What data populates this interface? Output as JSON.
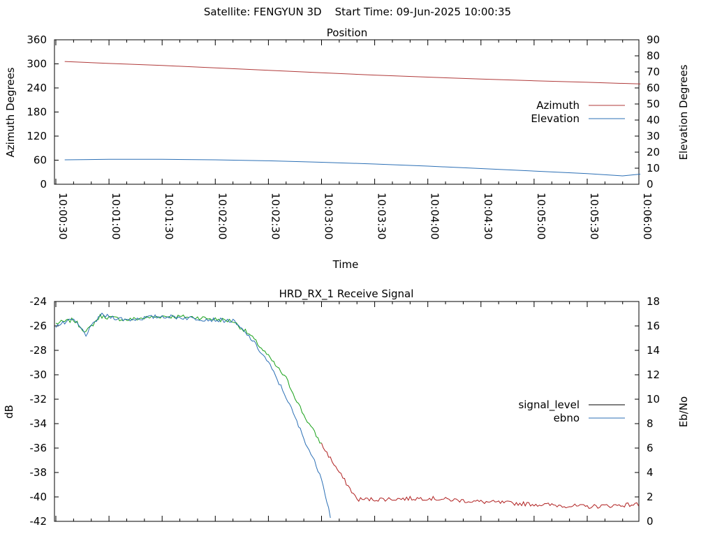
{
  "header": {
    "text": "Satellite: FENGYUN 3D    Start Time: 09-Jun-2025 10:00:35"
  },
  "colors": {
    "azimuth": "#b03a3a",
    "elevation": "#2b6fb5",
    "signal_green": "#16a016",
    "signal_red": "#b02020",
    "ebno": "#2b6fb5",
    "legend_signal_level": "#000000"
  },
  "chart_data": [
    {
      "type": "line",
      "title": "Position",
      "xlabel": "Time",
      "ylabel": "Azimuth Degrees",
      "y2label": "Elevation Degrees",
      "x_ticks": [
        "10:00:30",
        "10:01:00",
        "10:01:30",
        "10:02:00",
        "10:02:30",
        "10:03:00",
        "10:03:30",
        "10:04:00",
        "10:04:30",
        "10:05:00",
        "10:05:30",
        "10:06:00"
      ],
      "y_ticks": [
        "0",
        "60",
        "120",
        "180",
        "240",
        "300",
        "360"
      ],
      "y2_ticks": [
        "0",
        "10",
        "20",
        "30",
        "40",
        "50",
        "60",
        "70",
        "80",
        "90"
      ],
      "xlim": [
        "10:00:30",
        "10:06:00"
      ],
      "ylim": [
        0,
        360
      ],
      "y2lim": [
        0,
        90
      ],
      "legend": "right",
      "series": [
        {
          "name": "Azimuth",
          "axis": "y",
          "x": [
            "10:00:35",
            "10:01:00",
            "10:01:30",
            "10:02:00",
            "10:02:30",
            "10:03:00",
            "10:03:30",
            "10:04:00",
            "10:04:30",
            "10:05:00",
            "10:05:30",
            "10:06:00"
          ],
          "values": [
            306,
            301,
            296,
            290,
            284,
            278,
            272,
            267,
            262,
            258,
            254,
            250
          ]
        },
        {
          "name": "Elevation",
          "axis": "y2",
          "x": [
            "10:00:35",
            "10:01:00",
            "10:01:30",
            "10:02:00",
            "10:02:30",
            "10:03:00",
            "10:03:30",
            "10:04:00",
            "10:04:30",
            "10:05:00",
            "10:05:30",
            "10:05:50",
            "10:06:00"
          ],
          "values": [
            15.2,
            15.5,
            15.5,
            15.2,
            14.6,
            13.7,
            12.6,
            11.3,
            9.8,
            8.2,
            6.6,
            5.2,
            6.3
          ]
        }
      ]
    },
    {
      "type": "line",
      "title": "HRD_RX_1 Receive Signal",
      "ylabel": "dB",
      "y2label": "Eb/No",
      "y_ticks": [
        "-24",
        "-26",
        "-28",
        "-30",
        "-32",
        "-34",
        "-36",
        "-38",
        "-40",
        "-42"
      ],
      "y2_ticks": [
        "18",
        "16",
        "14",
        "12",
        "10",
        "8",
        "6",
        "4",
        "2",
        "0"
      ],
      "ylim": [
        -42,
        -24
      ],
      "y2lim": [
        0,
        18
      ],
      "legend": "right",
      "series": [
        {
          "name": "signal_level",
          "axis": "y",
          "x": [
            "10:00:30",
            "10:00:40",
            "10:00:47",
            "10:00:55",
            "10:01:10",
            "10:01:30",
            "10:01:50",
            "10:02:10",
            "10:02:20",
            "10:02:30",
            "10:02:40",
            "10:02:50",
            "10:03:00",
            "10:03:10",
            "10:03:20",
            "10:03:30",
            "10:04:00",
            "10:04:30",
            "10:05:00",
            "10:05:30",
            "10:06:00"
          ],
          "values": [
            -25.8,
            -25.5,
            -26.5,
            -25.2,
            -25.5,
            -25.2,
            -25.3,
            -25.6,
            -26.8,
            -28.5,
            -30.3,
            -33.3,
            -35.7,
            -38.0,
            -40.2,
            -40.2,
            -40.1,
            -40.4,
            -40.6,
            -40.8,
            -40.6
          ]
        },
        {
          "name": "ebno",
          "axis": "y2",
          "x": [
            "10:00:30",
            "10:00:40",
            "10:00:47",
            "10:00:55",
            "10:01:10",
            "10:01:30",
            "10:01:50",
            "10:02:10",
            "10:02:20",
            "10:02:30",
            "10:02:40",
            "10:02:50",
            "10:03:00",
            "10:03:05"
          ],
          "values": [
            16.0,
            16.5,
            15.3,
            16.9,
            16.5,
            16.8,
            16.6,
            16.4,
            15.0,
            13.0,
            10.2,
            6.8,
            3.6,
            0.4
          ]
        }
      ]
    }
  ]
}
